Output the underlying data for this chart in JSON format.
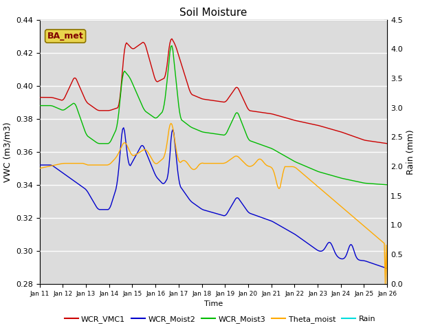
{
  "title": "Soil Moisture",
  "xlabel": "Time",
  "ylabel_left": "VWC (m3/m3)",
  "ylabel_right": "Rain (mm)",
  "ylim_left": [
    0.28,
    0.44
  ],
  "ylim_right": [
    0.0,
    4.5
  ],
  "xlim": [
    0,
    360
  ],
  "x_ticks": [
    0,
    24,
    48,
    72,
    96,
    120,
    144,
    168,
    192,
    216,
    240,
    264,
    288,
    312,
    336,
    360
  ],
  "x_tick_labels": [
    "Jan 11",
    "Jan 12",
    "Jan 13",
    "Jan 14",
    "Jan 15",
    "Jan 16",
    "Jan 17",
    "Jan 18",
    "Jan 19",
    "Jan 20",
    "Jan 21",
    "Jan 22",
    "Jan 23",
    "Jan 24",
    "Jan 25",
    "Jan 26"
  ],
  "background_color": "#dcdcdc",
  "plot_bg_color": "#dcdcdc",
  "legend_label": "BA_met",
  "series_colors": {
    "WCR_VMC1": "#cc0000",
    "WCR_Moist2": "#0000cc",
    "WCR_Moist3": "#00bb00",
    "Theta_moist": "#ffaa00",
    "Rain": "#00dddd"
  },
  "line_width": 1.0,
  "rain_bar_width": 0.9
}
